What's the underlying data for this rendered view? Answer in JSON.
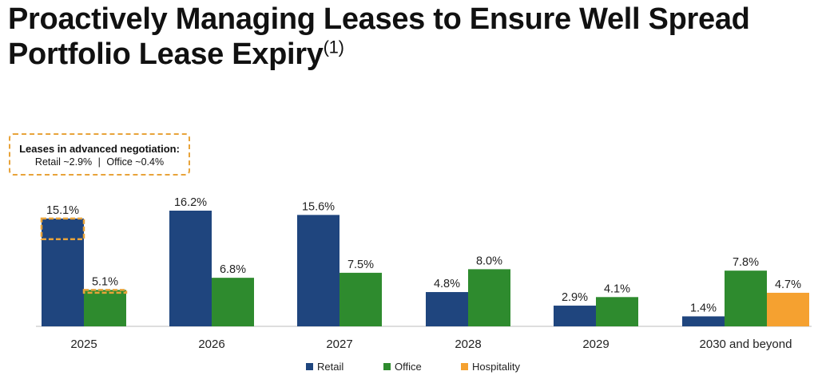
{
  "title": {
    "line1": "Proactively Managing Leases to Ensure Well Spread",
    "line2": "Portfolio Lease Expiry",
    "footnote": "(1)"
  },
  "callout": {
    "title": "Leases in advanced negotiation:",
    "retail": "Retail ~2.9%",
    "separator": "|",
    "office": "Office ~0.4%"
  },
  "colors": {
    "retail": "#1F457E",
    "office": "#2E8B2E",
    "hospitality": "#F5A130",
    "highlight": "#E8A33A"
  },
  "chart_data": {
    "type": "bar",
    "categories": [
      "2025",
      "2026",
      "2027",
      "2028",
      "2029",
      "2030 and beyond"
    ],
    "series": [
      {
        "name": "Retail",
        "values": [
          15.1,
          16.2,
          15.6,
          4.8,
          2.9,
          1.4
        ],
        "labels": [
          "15.1%",
          "16.2%",
          "15.6%",
          "4.8%",
          "2.9%",
          "1.4%"
        ]
      },
      {
        "name": "Office",
        "values": [
          5.1,
          6.8,
          7.5,
          8.0,
          4.1,
          7.8
        ],
        "labels": [
          "5.1%",
          "6.8%",
          "7.5%",
          "8.0%",
          "4.1%",
          "7.8%"
        ]
      },
      {
        "name": "Hospitality",
        "values": [
          null,
          null,
          null,
          null,
          null,
          4.7
        ],
        "labels": [
          null,
          null,
          null,
          null,
          null,
          "4.7%"
        ]
      }
    ],
    "advanced_negotiation": {
      "Retail": 2.9,
      "Office": 0.4
    },
    "ylim": [
      0,
      16.2
    ],
    "legend": "bottom",
    "grid": false
  },
  "legend": [
    {
      "name": "Retail",
      "color": "#1F457E"
    },
    {
      "name": "Office",
      "color": "#2E8B2E"
    },
    {
      "name": "Hospitality",
      "color": "#F5A130"
    }
  ]
}
